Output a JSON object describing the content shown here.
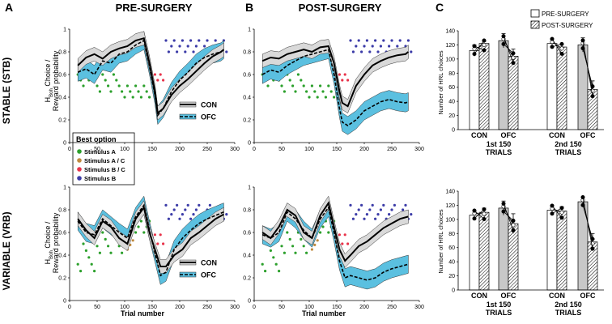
{
  "panels": {
    "A": "A",
    "B": "B",
    "C": "C",
    "col_pre": "PRE-SURGERY",
    "col_post": "POST-SURGERY",
    "row_stable": "STABLE (STB)",
    "row_variable": "VARIABLE (VRB)"
  },
  "axes": {
    "ylabel_line1_main": "H",
    "ylabel_line1_sub": "Boh",
    "ylabel_line1_rest": " Choice /",
    "ylabel_line2": "Reward probability",
    "xlabel": "Trial number",
    "xticks": [
      "0",
      "50",
      "100",
      "150",
      "200",
      "250",
      "300"
    ],
    "yticks": [
      "0",
      "0.2",
      "0.4",
      "0.6",
      "0.8",
      "1"
    ]
  },
  "line_legend": {
    "con": "CON",
    "ofc": "OFC"
  },
  "best_option": {
    "title": "Best option",
    "items": [
      {
        "label": "Stimulus A",
        "color": "#2ca02c"
      },
      {
        "label": "Stimulus A / C",
        "color": "#c08a3e"
      },
      {
        "label": "Stimulus B / C",
        "color": "#e8334a"
      },
      {
        "label": "Stimulus B",
        "color": "#3c3ca8"
      }
    ]
  },
  "bar_legend": {
    "pre": "PRE-SURGERY",
    "post": "POST-SURGERY"
  },
  "bar_axes": {
    "ylabel": "Number of HRL choices",
    "yticks": [
      "0",
      "20",
      "40",
      "60",
      "80",
      "100",
      "120",
      "140"
    ],
    "groups": [
      "CON",
      "OFC",
      "CON",
      "OFC"
    ],
    "blocks": [
      {
        "line1": "1st 150",
        "line2": "TRIALS"
      },
      {
        "line1": "2nd 150",
        "line2": "TRIALS"
      }
    ]
  },
  "colors": {
    "ofc_band": "#5bc0e0",
    "con_band": "#d9d9d9",
    "bar_pre": "#ffffff",
    "bar_grey": "#c8c8c8"
  },
  "chart_data": [
    {
      "type": "bar",
      "title": "STABLE (STB)",
      "ylabel": "Number of HRL choices",
      "ylim": [
        0,
        140
      ],
      "categories": [
        "CON 1st 150",
        "OFC 1st 150",
        "CON 2nd 150",
        "OFC 2nd 150"
      ],
      "series": [
        {
          "name": "PRE-SURGERY",
          "values": [
            112,
            126,
            122,
            120
          ],
          "errors": [
            8,
            10,
            2,
            10
          ]
        },
        {
          "name": "POST-SURGERY",
          "values": [
            122,
            104,
            117,
            57
          ],
          "errors": [
            3,
            10,
            4,
            12
          ]
        }
      ]
    },
    {
      "type": "bar",
      "title": "VARIABLE (VRB)",
      "ylabel": "Number of HRL choices",
      "ylim": [
        0,
        140
      ],
      "categories": [
        "CON 1st 150",
        "OFC 1st 150",
        "CON 2nd 150",
        "OFC 2nd 150"
      ],
      "series": [
        {
          "name": "PRE-SURGERY",
          "values": [
            106,
            116,
            113,
            125
          ],
          "errors": [
            6,
            10,
            6,
            3
          ]
        },
        {
          "name": "POST-SURGERY",
          "values": [
            110,
            94,
            112,
            68
          ],
          "errors": [
            6,
            14,
            6,
            12
          ]
        }
      ]
    },
    {
      "type": "line",
      "title": "STABLE PRE-SURGERY",
      "xlim": [
        0,
        300
      ],
      "ylim": [
        0,
        1
      ],
      "xlabel": "Trial number",
      "series": [
        {
          "name": "CON",
          "x": [
            15,
            30,
            45,
            60,
            75,
            90,
            105,
            120,
            135,
            145,
            155,
            160,
            170,
            185,
            200,
            215,
            230,
            245,
            260,
            275,
            280
          ],
          "y": [
            0.68,
            0.75,
            0.78,
            0.74,
            0.8,
            0.83,
            0.85,
            0.9,
            0.92,
            0.7,
            0.45,
            0.26,
            0.3,
            0.42,
            0.5,
            0.56,
            0.63,
            0.7,
            0.76,
            0.8,
            0.82
          ]
        },
        {
          "name": "OFC",
          "x": [
            15,
            30,
            45,
            60,
            75,
            90,
            105,
            120,
            135,
            145,
            155,
            160,
            170,
            185,
            200,
            215,
            230,
            245,
            260,
            275,
            280
          ],
          "y": [
            0.62,
            0.65,
            0.6,
            0.72,
            0.7,
            0.78,
            0.8,
            0.86,
            0.9,
            0.68,
            0.42,
            0.24,
            0.3,
            0.45,
            0.55,
            0.62,
            0.7,
            0.75,
            0.78,
            0.8,
            0.82
          ]
        }
      ]
    },
    {
      "type": "line",
      "title": "STABLE POST-SURGERY",
      "xlim": [
        0,
        300
      ],
      "ylim": [
        0,
        1
      ],
      "xlabel": "Trial number",
      "series": [
        {
          "name": "CON",
          "x": [
            15,
            30,
            45,
            60,
            75,
            90,
            105,
            120,
            135,
            145,
            155,
            160,
            170,
            185,
            200,
            215,
            230,
            245,
            260,
            275,
            280
          ],
          "y": [
            0.72,
            0.75,
            0.74,
            0.78,
            0.8,
            0.82,
            0.8,
            0.84,
            0.85,
            0.7,
            0.45,
            0.35,
            0.32,
            0.5,
            0.6,
            0.68,
            0.72,
            0.75,
            0.77,
            0.78,
            0.8
          ]
        },
        {
          "name": "OFC",
          "x": [
            15,
            30,
            45,
            60,
            75,
            90,
            105,
            120,
            135,
            145,
            155,
            160,
            170,
            185,
            200,
            215,
            230,
            245,
            260,
            275,
            280
          ],
          "y": [
            0.6,
            0.64,
            0.62,
            0.68,
            0.72,
            0.76,
            0.78,
            0.8,
            0.82,
            0.6,
            0.3,
            0.18,
            0.15,
            0.2,
            0.28,
            0.32,
            0.36,
            0.38,
            0.36,
            0.35,
            0.36
          ]
        }
      ]
    },
    {
      "type": "line",
      "title": "VARIABLE PRE-SURGERY",
      "xlim": [
        0,
        300
      ],
      "ylim": [
        0,
        1
      ],
      "xlabel": "Trial number",
      "series": [
        {
          "name": "CON",
          "x": [
            15,
            30,
            45,
            60,
            75,
            90,
            105,
            120,
            135,
            145,
            155,
            165,
            175,
            190,
            205,
            220,
            235,
            250,
            265,
            280
          ],
          "y": [
            0.72,
            0.62,
            0.55,
            0.7,
            0.65,
            0.55,
            0.5,
            0.72,
            0.82,
            0.6,
            0.45,
            0.3,
            0.3,
            0.4,
            0.45,
            0.55,
            0.6,
            0.66,
            0.72,
            0.76
          ]
        },
        {
          "name": "OFC",
          "x": [
            15,
            30,
            45,
            60,
            75,
            90,
            105,
            120,
            135,
            145,
            155,
            165,
            175,
            190,
            205,
            220,
            235,
            250,
            265,
            280
          ],
          "y": [
            0.7,
            0.6,
            0.58,
            0.72,
            0.66,
            0.6,
            0.55,
            0.74,
            0.84,
            0.62,
            0.42,
            0.22,
            0.25,
            0.45,
            0.55,
            0.62,
            0.68,
            0.72,
            0.75,
            0.78
          ]
        }
      ]
    },
    {
      "type": "line",
      "title": "VARIABLE POST-SURGERY",
      "xlim": [
        0,
        300
      ],
      "ylim": [
        0,
        1
      ],
      "xlabel": "Trial number",
      "series": [
        {
          "name": "CON",
          "x": [
            15,
            30,
            45,
            60,
            75,
            90,
            105,
            120,
            135,
            145,
            155,
            165,
            175,
            190,
            205,
            220,
            235,
            250,
            265,
            280
          ],
          "y": [
            0.6,
            0.55,
            0.65,
            0.8,
            0.75,
            0.6,
            0.55,
            0.75,
            0.86,
            0.65,
            0.45,
            0.35,
            0.4,
            0.48,
            0.52,
            0.58,
            0.64,
            0.68,
            0.72,
            0.74
          ]
        },
        {
          "name": "OFC",
          "x": [
            15,
            30,
            45,
            60,
            75,
            90,
            105,
            120,
            135,
            145,
            155,
            165,
            175,
            190,
            205,
            220,
            235,
            250,
            265,
            280
          ],
          "y": [
            0.58,
            0.55,
            0.6,
            0.78,
            0.72,
            0.62,
            0.55,
            0.72,
            0.82,
            0.6,
            0.35,
            0.2,
            0.22,
            0.2,
            0.18,
            0.2,
            0.25,
            0.28,
            0.3,
            0.32
          ]
        }
      ]
    }
  ]
}
